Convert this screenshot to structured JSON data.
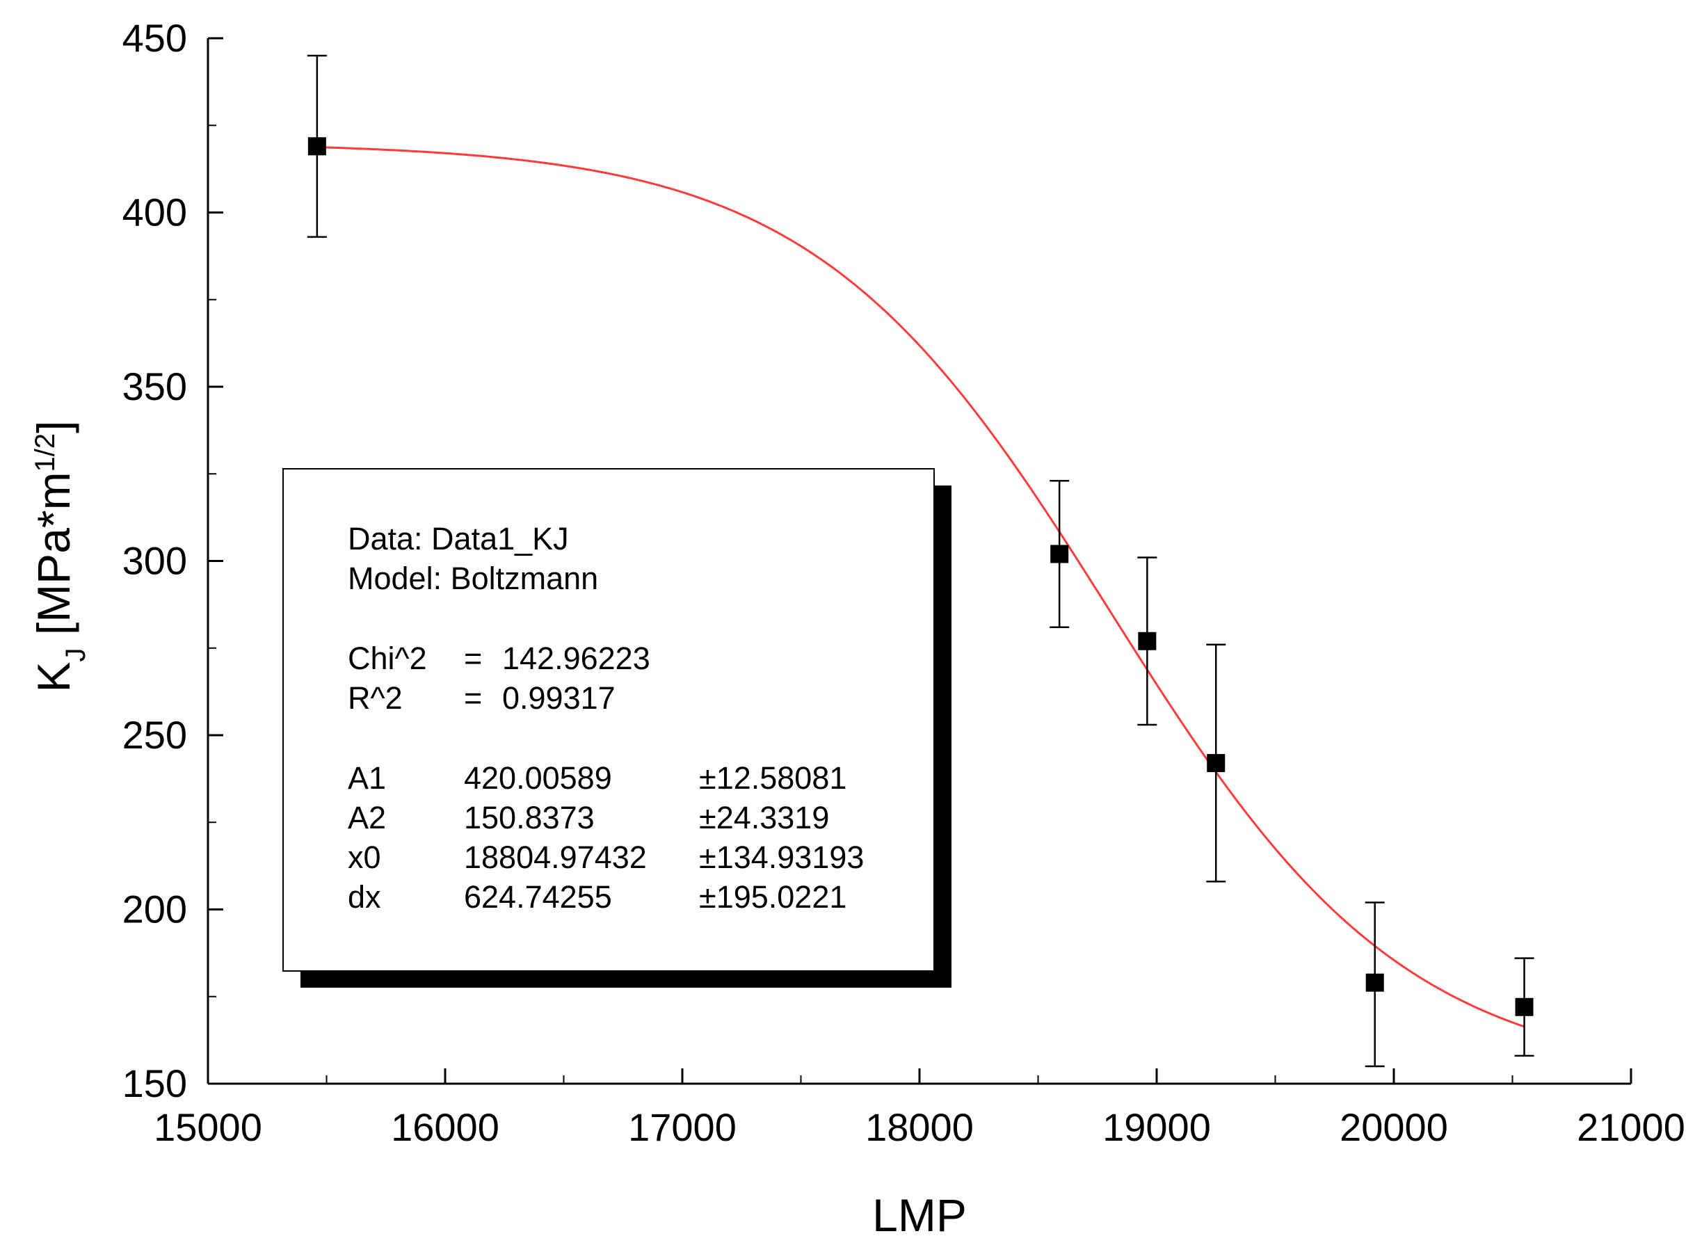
{
  "chart_data": {
    "type": "scatter",
    "xlabel": "LMP",
    "ylabel": {
      "main": "K",
      "sub": "J",
      "unit_prefix": " [MPa*m",
      "unit_sup": "1/2",
      "unit_suffix": "]"
    },
    "xlim": [
      15000,
      21000
    ],
    "ylim": [
      150,
      450
    ],
    "xticks": [
      15000,
      16000,
      17000,
      18000,
      19000,
      20000,
      21000
    ],
    "yticks": [
      150,
      200,
      250,
      300,
      350,
      400,
      450
    ],
    "grid": false,
    "colors": {
      "points": "#000000",
      "error_bars": "#000000",
      "fit_curve": "#ff3b3b",
      "axes": "#000000"
    },
    "series": [
      {
        "marker": "square",
        "points": [
          {
            "x": 15460,
            "y": 419,
            "err_low": 393,
            "err_high": 445
          },
          {
            "x": 18590,
            "y": 302,
            "err_low": 281,
            "err_high": 323
          },
          {
            "x": 18960,
            "y": 277,
            "err_low": 253,
            "err_high": 301
          },
          {
            "x": 19250,
            "y": 242,
            "err_low": 208,
            "err_high": 276
          },
          {
            "x": 19920,
            "y": 179,
            "err_low": 155,
            "err_high": 202
          },
          {
            "x": 20550,
            "y": 172,
            "err_low": 158,
            "err_high": 186
          }
        ]
      }
    ],
    "fit": {
      "model": "Boltzmann",
      "A1": 420.00589,
      "A2": 150.8373,
      "x0": 18804.97432,
      "dx": 624.74255,
      "x_range": [
        15460,
        20550
      ]
    },
    "fit_box": {
      "position": "center-left",
      "lines": [
        {
          "label": "Data: Data1_KJ"
        },
        {
          "label": "Model: Boltzmann"
        },
        {
          "label": "Chi^2",
          "eq": "=",
          "value": "142.96223"
        },
        {
          "label": "R^2",
          "eq": "=",
          "value": "0.99317"
        },
        {
          "label": "A1",
          "value": "420.00589",
          "error": "±12.58081"
        },
        {
          "label": "A2",
          "value": "150.8373",
          "error": "±24.3319"
        },
        {
          "label": "x0",
          "value": "18804.97432",
          "error": "±134.93193"
        },
        {
          "label": "dx",
          "value": "624.74255",
          "error": "±195.0221"
        }
      ]
    }
  }
}
